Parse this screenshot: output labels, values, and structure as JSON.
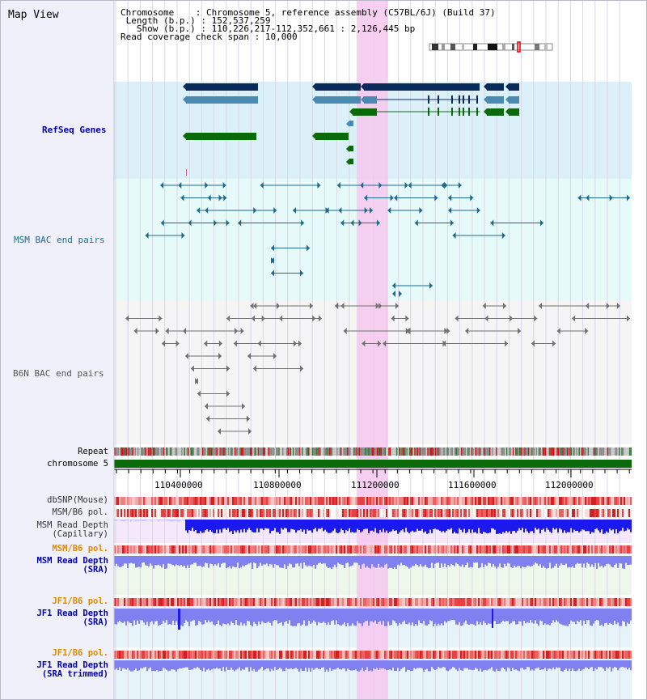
{
  "view_title": "Map View",
  "info": {
    "chromosome_label": "Chromosome",
    "chromosome_value": "Chromosome 5, reference assembly (C57BL/6J) (Build 37)",
    "length_label": "Length (b.p.)",
    "length_value": "152,537,259",
    "show_label": "Show (b.p.)",
    "show_value": "110,226,217-112,352,661 : 2,126,445 bp",
    "span_label": "Read coverage check span",
    "span_value": "10,000"
  },
  "tracks": {
    "refseq": "RefSeq Genes",
    "msm_bac": "MSM BAC end pairs",
    "b6n_bac": "B6N BAC end pairs",
    "repeat": "Repeat",
    "chromosome": "chromosome 5",
    "dbsnp": "dbSNP(Mouse)",
    "msm_b6_pol_1": "MSM/B6 pol.",
    "msm_depth_cap_1": "MSM Read Depth",
    "msm_depth_cap_2": "(Capillary)",
    "msm_b6_pol_2": "MSM/B6 pol.",
    "msm_depth_sra_1": "MSM Read Depth",
    "msm_depth_sra_2": "(SRA)",
    "jf1_b6_pol_1": "JF1/B6 pol.",
    "jf1_depth_sra_1": "JF1 Read Depth",
    "jf1_depth_sra_2": "(SRA)",
    "jf1_b6_pol_2": "JF1/B6 pol.",
    "jf1_depth_trim_1": "JF1 Read Depth",
    "jf1_depth_trim_2": "(SRA trimmed)"
  },
  "axis_ticks": [
    "110400000",
    "110800000",
    "111200000",
    "111600000",
    "112000000"
  ],
  "colors": {
    "refseq_bg": "#dcf0fa",
    "msm_bg": "#e6fafa",
    "b6n_bg": "#f5f5f5",
    "highlight": "#f6c8ee",
    "gene_dark": "#0a2a5a",
    "gene_mid": "#4a8ab0",
    "gene_green": "#0a6a0a",
    "msm_line": "#1f6a8a",
    "b6n_line": "#707070",
    "chromosome": "#0a6a0a",
    "depth_blue": "#1a1aee",
    "depth_light": "#8080f0",
    "label_blue": "#0000aa",
    "label_orange": "#e08a00"
  }
}
